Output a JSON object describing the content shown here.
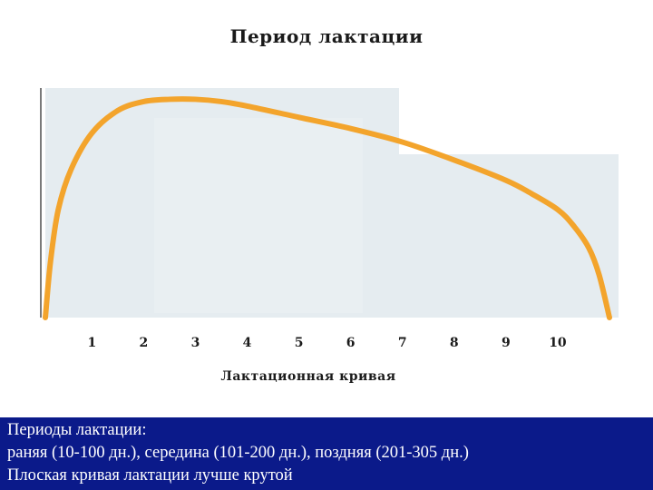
{
  "chart_data": {
    "type": "line",
    "title": "Период лактации",
    "xlabel": "Лактационная кривая",
    "ylabel": "",
    "x": [
      1,
      2,
      3,
      4,
      5,
      6,
      7,
      8,
      9,
      10
    ],
    "xlim": [
      0.1,
      11.0
    ],
    "ylim": [
      0,
      100
    ],
    "grid": false,
    "legend": "none",
    "series": [
      {
        "color": "#f3a42c",
        "points": [
          [
            0.1,
            0
          ],
          [
            0.2,
            25
          ],
          [
            0.35,
            48
          ],
          [
            0.6,
            66
          ],
          [
            1.0,
            82
          ],
          [
            1.5,
            92
          ],
          [
            2.0,
            96
          ],
          [
            2.5,
            97
          ],
          [
            3.0,
            97
          ],
          [
            3.5,
            96
          ],
          [
            4.0,
            94
          ],
          [
            5.0,
            89
          ],
          [
            6.0,
            84
          ],
          [
            7.0,
            78
          ],
          [
            8.0,
            70
          ],
          [
            9.0,
            61
          ],
          [
            9.5,
            55
          ],
          [
            10.0,
            48
          ],
          [
            10.3,
            41
          ],
          [
            10.6,
            31
          ],
          [
            10.8,
            19
          ],
          [
            11.0,
            0
          ]
        ]
      }
    ]
  },
  "caption": {
    "lines": [
      "Периоды лактации:",
      "раняя (10-100 дн.), середина (101-200 дн.), поздняя (201-305 дн.)",
      "Плоская кривая лактации лучше крутой"
    ]
  },
  "colors": {
    "curve": "#f3a42c",
    "plot_background": "#e5ecf0",
    "caption_background": "#0b1a8a"
  }
}
